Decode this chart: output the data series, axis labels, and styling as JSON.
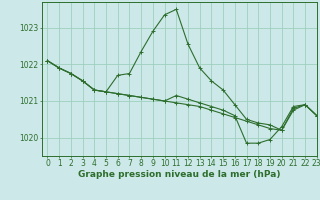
{
  "title": "Graphe pression niveau de la mer (hPa)",
  "background_color": "#cce8e8",
  "grid_color": "#9ecfbe",
  "line_color": "#2d6e2d",
  "marker_color": "#2d6e2d",
  "xlim": [
    -0.5,
    23
  ],
  "ylim": [
    1019.5,
    1023.7
  ],
  "yticks": [
    1020,
    1021,
    1022,
    1023
  ],
  "xticks": [
    0,
    1,
    2,
    3,
    4,
    5,
    6,
    7,
    8,
    9,
    10,
    11,
    12,
    13,
    14,
    15,
    16,
    17,
    18,
    19,
    20,
    21,
    22,
    23
  ],
  "series": [
    [
      1022.1,
      1021.9,
      1021.75,
      1021.55,
      1021.3,
      1021.25,
      1021.7,
      1021.75,
      1022.35,
      1022.9,
      1023.35,
      1023.5,
      1022.55,
      1021.9,
      1021.55,
      1021.3,
      1020.9,
      1020.5,
      1020.4,
      1020.35,
      1020.2,
      1020.75,
      1020.9,
      1020.6
    ],
    [
      1022.1,
      1021.9,
      1021.75,
      1021.55,
      1021.3,
      1021.25,
      1021.2,
      1021.15,
      1021.1,
      1021.05,
      1021.0,
      1021.15,
      1021.05,
      1020.95,
      1020.85,
      1020.75,
      1020.6,
      1019.85,
      1019.85,
      1019.95,
      1020.3,
      1020.85,
      1020.9,
      1020.6
    ],
    [
      1022.1,
      1021.9,
      1021.75,
      1021.55,
      1021.3,
      1021.25,
      1021.2,
      1021.15,
      1021.1,
      1021.05,
      1021.0,
      1020.95,
      1020.9,
      1020.85,
      1020.75,
      1020.65,
      1020.55,
      1020.45,
      1020.35,
      1020.25,
      1020.2,
      1020.8,
      1020.9,
      1020.6
    ]
  ],
  "tick_fontsize": 5.5,
  "title_fontsize": 6.5
}
